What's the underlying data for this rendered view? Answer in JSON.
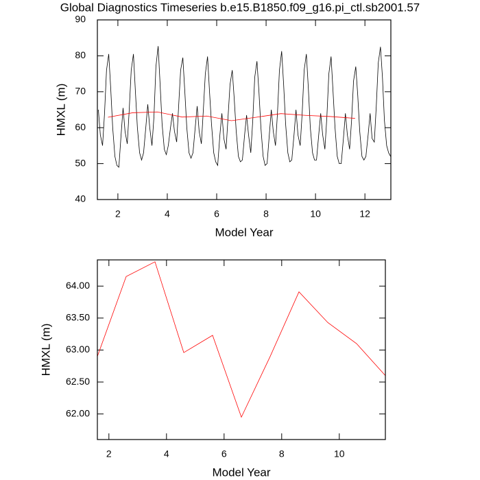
{
  "chart_data": [
    {
      "type": "line",
      "title": "Global Diagnostics Timeseries b.e15.B1850.f09_g16.pi_ctl.sb2001.57",
      "xlabel": "Model Year",
      "ylabel": "HMXL (m)",
      "xlim": [
        1.17,
        13.05
      ],
      "ylim": [
        40,
        90
      ],
      "xticks": [
        2,
        4,
        6,
        8,
        10,
        12
      ],
      "yticks": [
        40,
        50,
        60,
        70,
        80,
        90
      ],
      "series": [
        {
          "color": "#000000",
          "x": [
            1.21,
            1.29,
            1.38,
            1.46,
            1.54,
            1.63,
            1.71,
            1.79,
            1.88,
            1.96,
            2.04,
            2.13,
            2.21,
            2.29,
            2.38,
            2.46,
            2.54,
            2.63,
            2.71,
            2.79,
            2.88,
            2.96,
            3.04,
            3.13,
            3.21,
            3.29,
            3.38,
            3.46,
            3.54,
            3.63,
            3.71,
            3.79,
            3.88,
            3.96,
            4.04,
            4.13,
            4.21,
            4.29,
            4.38,
            4.46,
            4.54,
            4.63,
            4.71,
            4.79,
            4.88,
            4.96,
            5.04,
            5.13,
            5.21,
            5.29,
            5.38,
            5.46,
            5.54,
            5.63,
            5.71,
            5.79,
            5.88,
            5.96,
            6.04,
            6.13,
            6.21,
            6.29,
            6.38,
            6.46,
            6.54,
            6.63,
            6.71,
            6.79,
            6.88,
            6.96,
            7.04,
            7.13,
            7.21,
            7.29,
            7.38,
            7.46,
            7.54,
            7.63,
            7.71,
            7.79,
            7.88,
            7.96,
            8.04,
            8.13,
            8.21,
            8.29,
            8.38,
            8.46,
            8.54,
            8.63,
            8.71,
            8.79,
            8.88,
            8.96,
            9.04,
            9.13,
            9.21,
            9.29,
            9.38,
            9.46,
            9.54,
            9.63,
            9.71,
            9.79,
            9.88,
            9.96,
            10.04,
            10.13,
            10.21,
            10.29,
            10.38,
            10.46,
            10.54,
            10.63,
            10.71,
            10.79,
            10.88,
            10.96,
            11.04,
            11.13,
            11.21,
            11.29,
            11.38,
            11.46,
            11.54,
            11.63,
            11.71,
            11.79,
            11.88,
            11.96,
            12.04,
            12.13,
            12.21,
            12.29,
            12.38,
            12.46,
            12.54,
            12.63,
            12.71,
            12.79,
            12.88,
            12.96,
            13.04
          ],
          "values": [
            65,
            58,
            55,
            64,
            76,
            80.5,
            71,
            60,
            52,
            49.5,
            49,
            58,
            65.5,
            59,
            55.5,
            65,
            76,
            80.5,
            70,
            60,
            53,
            51,
            53,
            60,
            66.5,
            60,
            55,
            63,
            77,
            82.7,
            72,
            61,
            54,
            52.5,
            55,
            60,
            64,
            59,
            56,
            66,
            76,
            79.5,
            70,
            60,
            53,
            51.5,
            53,
            60,
            66,
            59,
            55.5,
            65,
            75,
            79.8,
            70,
            61,
            53,
            50.5,
            49.5,
            58,
            64,
            57,
            54,
            63,
            72,
            76,
            68,
            59,
            52,
            50.5,
            51,
            58,
            63.5,
            58,
            53,
            62,
            74,
            78.5,
            70,
            60,
            52,
            49.5,
            50,
            58,
            65,
            59,
            55,
            64,
            76,
            81.3,
            72,
            61,
            53,
            50.5,
            51,
            58,
            65,
            58,
            55,
            64,
            76,
            80.5,
            71,
            60,
            53,
            51,
            51,
            58,
            64,
            58,
            54,
            63,
            75,
            79.8,
            70,
            60,
            52,
            50,
            50,
            57,
            64,
            58,
            54,
            62,
            73,
            77,
            69,
            59,
            52,
            51,
            52,
            58,
            64,
            57,
            56,
            66,
            78,
            82.5,
            74,
            62,
            55,
            53,
            52
          ]
        },
        {
          "color": "#ff0000",
          "x": [
            1.6,
            2.6,
            3.6,
            4.6,
            5.6,
            6.6,
            7.6,
            8.6,
            9.6,
            10.6,
            11.6
          ],
          "values": [
            62.9,
            64.15,
            64.38,
            62.96,
            63.23,
            61.95,
            62.9,
            63.91,
            63.43,
            63.1,
            62.6
          ]
        }
      ]
    },
    {
      "type": "line",
      "xlabel": "Model Year",
      "ylabel": "HMXL (m)",
      "xlim": [
        1.6,
        11.6
      ],
      "ylim": [
        61.6,
        64.41
      ],
      "xticks": [
        2,
        4,
        6,
        8,
        10
      ],
      "yticks": [
        {
          "value": 62,
          "label": "62.00"
        },
        {
          "value": 62.5,
          "label": "62.50"
        },
        {
          "value": 63,
          "label": "63.00"
        },
        {
          "value": 63.5,
          "label": "63.50"
        },
        {
          "value": 64,
          "label": "64.00"
        }
      ],
      "series": [
        {
          "color": "#ff0000",
          "x": [
            1.6,
            2.6,
            3.6,
            4.6,
            5.6,
            6.6,
            7.6,
            8.6,
            9.6,
            10.6,
            11.6
          ],
          "values": [
            62.9,
            64.15,
            64.38,
            62.96,
            63.23,
            61.95,
            62.9,
            63.91,
            63.43,
            63.1,
            62.6
          ]
        }
      ]
    }
  ]
}
